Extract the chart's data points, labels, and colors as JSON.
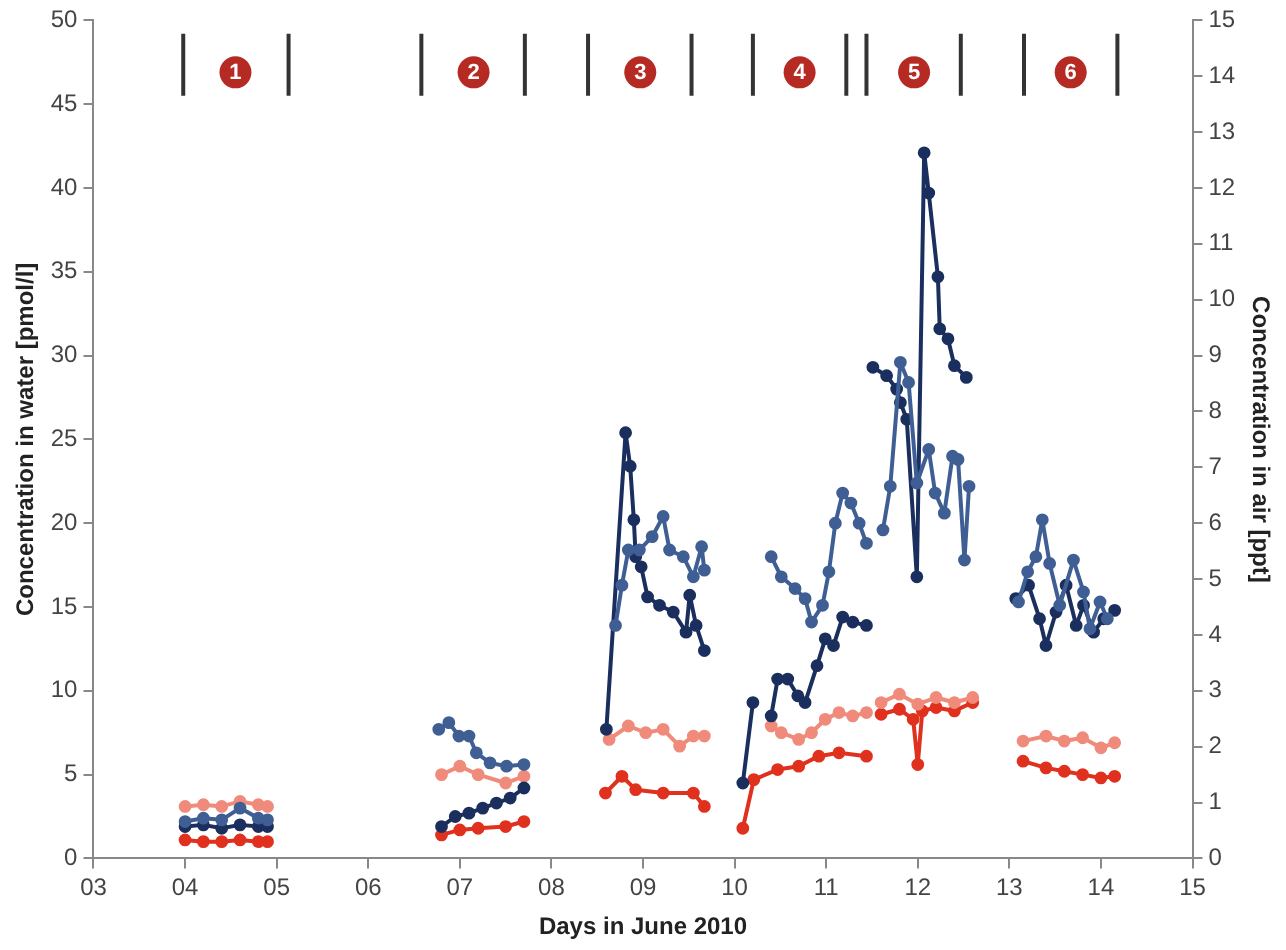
{
  "chart_data": {
    "type": "line",
    "xlabel": "Days in June 2010",
    "ylabel": "Concentration in water [pmol/l]",
    "y2label": "Concentration in air [ppt]",
    "xlim": [
      3,
      15
    ],
    "xticks": [
      {
        "value": 3,
        "label": "03"
      },
      {
        "value": 4,
        "label": "04"
      },
      {
        "value": 5,
        "label": "05"
      },
      {
        "value": 6,
        "label": "06"
      },
      {
        "value": 7,
        "label": "07"
      },
      {
        "value": 8,
        "label": "08"
      },
      {
        "value": 9,
        "label": "09"
      },
      {
        "value": 10,
        "label": "10"
      },
      {
        "value": 11,
        "label": "11"
      },
      {
        "value": 12,
        "label": "12"
      },
      {
        "value": 13,
        "label": "13"
      },
      {
        "value": 14,
        "label": "14"
      },
      {
        "value": 15,
        "label": "15"
      }
    ],
    "ylim": [
      0,
      50
    ],
    "yticks": [
      0,
      5,
      10,
      15,
      20,
      25,
      30,
      35,
      40,
      45,
      50
    ],
    "y2lim": [
      0,
      15
    ],
    "y2ticks": [
      0,
      1,
      2,
      3,
      4,
      5,
      6,
      7,
      8,
      9,
      10,
      11,
      12,
      13,
      14,
      15
    ],
    "grid": false,
    "marker": "circle",
    "line_style": "solid",
    "annotations": [
      {
        "text": "1",
        "x": 4.55,
        "y": 46.9
      },
      {
        "text": "2",
        "x": 7.15,
        "y": 46.9
      },
      {
        "text": "3",
        "x": 8.97,
        "y": 46.9
      },
      {
        "text": "4",
        "x": 10.71,
        "y": 46.9
      },
      {
        "text": "5",
        "x": 11.96,
        "y": 46.9
      },
      {
        "text": "6",
        "x": 13.67,
        "y": 46.9
      }
    ],
    "series": [
      {
        "color": "#333333",
        "marker": "none",
        "x": [
          3.98,
          3.98,
          null,
          5.13,
          5.13,
          null,
          6.58,
          6.58,
          null,
          7.71,
          7.71,
          null,
          8.4,
          8.4,
          null,
          9.53,
          9.53,
          null,
          10.2,
          10.2,
          null,
          11.22,
          11.22,
          null,
          11.44,
          11.44,
          null,
          12.47,
          12.47,
          null,
          13.16,
          13.16,
          null,
          14.18,
          14.18
        ],
        "values": [
          45.5,
          49.2,
          null,
          45.5,
          49.2,
          null,
          45.5,
          49.2,
          null,
          45.5,
          49.2,
          null,
          45.5,
          49.2,
          null,
          45.5,
          49.2,
          null,
          45.5,
          49.2,
          null,
          45.5,
          49.2,
          null,
          45.5,
          49.2,
          null,
          45.5,
          49.2,
          null,
          45.5,
          49.2,
          null,
          45.5,
          49.2
        ]
      },
      {
        "color": "#3f5f94",
        "x": [
          4.0,
          4.2,
          4.4,
          4.6,
          4.8,
          4.9,
          5.8,
          6.77,
          6.88,
          6.99,
          7.1,
          7.18,
          7.33,
          7.51,
          7.7,
          8.2,
          8.7,
          8.77,
          8.84,
          8.96,
          9.1,
          9.22,
          9.29,
          9.44,
          9.55,
          9.64,
          9.67,
          10.0,
          10.4,
          10.51,
          10.66,
          10.77,
          10.84,
          10.96,
          11.03,
          11.1,
          11.18,
          11.27,
          11.36,
          11.44,
          11.53,
          11.62,
          11.7,
          11.81,
          11.9,
          11.99,
          12.12,
          12.19,
          12.29,
          12.38,
          12.44,
          12.51,
          12.56,
          12.9,
          13.1,
          13.2,
          13.29,
          13.36,
          13.44,
          13.55,
          13.7,
          13.81,
          13.88,
          13.99,
          14.07
        ],
        "values": [
          2.2,
          2.4,
          2.3,
          3.0,
          2.4,
          2.3,
          null,
          7.7,
          8.1,
          7.3,
          7.3,
          6.3,
          5.7,
          5.5,
          5.6,
          null,
          13.9,
          16.3,
          18.4,
          18.4,
          19.2,
          20.4,
          18.4,
          18.0,
          16.8,
          18.6,
          17.2,
          null,
          18.0,
          16.8,
          16.1,
          15.5,
          14.1,
          15.1,
          17.1,
          20.0,
          21.8,
          21.2,
          20.0,
          18.8,
          null,
          19.6,
          22.2,
          29.6,
          28.4,
          22.4,
          24.4,
          21.8,
          20.6,
          24.0,
          23.8,
          17.8,
          22.2,
          null,
          15.3,
          17.1,
          18.0,
          20.2,
          17.6,
          15.1,
          17.8,
          15.9,
          13.7,
          15.3,
          14.3
        ]
      },
      {
        "color": "#1b2f5e",
        "x": [
          4.0,
          4.2,
          4.4,
          4.6,
          4.8,
          4.9,
          5.8,
          6.8,
          6.95,
          7.1,
          7.25,
          7.4,
          7.55,
          7.7,
          8.2,
          8.6,
          8.81,
          8.86,
          8.9,
          8.92,
          8.98,
          9.05,
          9.18,
          9.33,
          9.47,
          9.51,
          9.58,
          9.67,
          9.9,
          10.09,
          10.2,
          10.3,
          10.4,
          10.47,
          10.58,
          10.69,
          10.77,
          10.9,
          10.99,
          11.08,
          11.18,
          11.29,
          11.44,
          11.48,
          11.51,
          11.66,
          11.77,
          11.81,
          11.88,
          11.99,
          12.07,
          12.12,
          12.22,
          12.24,
          12.33,
          12.4,
          12.53,
          12.8,
          13.07,
          13.21,
          13.33,
          13.4,
          13.51,
          13.62,
          13.73,
          13.81,
          13.92,
          14.03,
          14.15
        ],
        "values": [
          1.9,
          2.0,
          1.8,
          2.0,
          1.9,
          1.9,
          null,
          1.9,
          2.5,
          2.7,
          3.0,
          3.3,
          3.6,
          4.2,
          null,
          7.7,
          25.4,
          23.4,
          20.2,
          18.0,
          17.4,
          15.6,
          15.1,
          14.7,
          13.5,
          15.7,
          13.9,
          12.4,
          null,
          4.5,
          9.3,
          null,
          8.5,
          10.7,
          10.7,
          9.7,
          9.3,
          11.5,
          13.1,
          12.7,
          14.4,
          14.1,
          13.9,
          null,
          29.3,
          28.8,
          28.0,
          27.2,
          26.2,
          16.8,
          42.1,
          39.7,
          34.7,
          31.6,
          31.0,
          29.4,
          28.7,
          null,
          15.5,
          16.3,
          14.3,
          12.7,
          14.7,
          16.3,
          13.9,
          15.1,
          13.5,
          14.3,
          14.8
        ]
      },
      {
        "color": "#f08a7a",
        "x": [
          4.0,
          4.2,
          4.4,
          4.6,
          4.8,
          4.9,
          5.8,
          6.8,
          7.0,
          7.2,
          7.5,
          7.7,
          8.2,
          8.63,
          8.84,
          9.03,
          9.22,
          9.4,
          9.55,
          9.67,
          10.0,
          10.4,
          10.51,
          10.7,
          10.84,
          10.99,
          11.14,
          11.29,
          11.44,
          11.52,
          11.6,
          11.8,
          12.0,
          12.2,
          12.4,
          12.6,
          12.9,
          13.15,
          13.4,
          13.6,
          13.8,
          14.0,
          14.15
        ],
        "values": [
          3.1,
          3.2,
          3.1,
          3.4,
          3.2,
          3.1,
          null,
          5.0,
          5.5,
          5.0,
          4.5,
          4.9,
          null,
          7.1,
          7.9,
          7.5,
          7.7,
          6.7,
          7.3,
          7.3,
          null,
          7.9,
          7.5,
          7.1,
          7.5,
          8.3,
          8.7,
          8.5,
          8.7,
          null,
          9.3,
          9.8,
          9.2,
          9.6,
          9.3,
          9.6,
          null,
          7.0,
          7.3,
          7.0,
          7.2,
          6.6,
          6.9
        ]
      },
      {
        "color": "#e0301e",
        "x": [
          4.0,
          4.2,
          4.4,
          4.6,
          4.8,
          4.9,
          5.8,
          6.8,
          7.0,
          7.2,
          7.5,
          7.7,
          8.2,
          8.59,
          8.77,
          8.92,
          9.22,
          9.55,
          9.67,
          9.9,
          10.09,
          10.21,
          10.47,
          10.7,
          10.92,
          11.14,
          11.44,
          11.52,
          11.6,
          11.8,
          11.95,
          12.0,
          12.05,
          12.2,
          12.4,
          12.6,
          12.9,
          13.15,
          13.4,
          13.6,
          13.8,
          14.0,
          14.15
        ],
        "values": [
          1.1,
          1.0,
          1.0,
          1.1,
          1.0,
          1.0,
          null,
          1.4,
          1.7,
          1.8,
          1.9,
          2.2,
          null,
          3.9,
          4.9,
          4.1,
          3.9,
          3.9,
          3.1,
          null,
          1.8,
          4.7,
          5.3,
          5.5,
          6.1,
          6.3,
          6.1,
          null,
          8.6,
          8.9,
          8.3,
          5.6,
          8.8,
          9.0,
          8.8,
          9.3,
          null,
          5.8,
          5.4,
          5.2,
          5.0,
          4.8,
          4.9
        ]
      }
    ]
  }
}
